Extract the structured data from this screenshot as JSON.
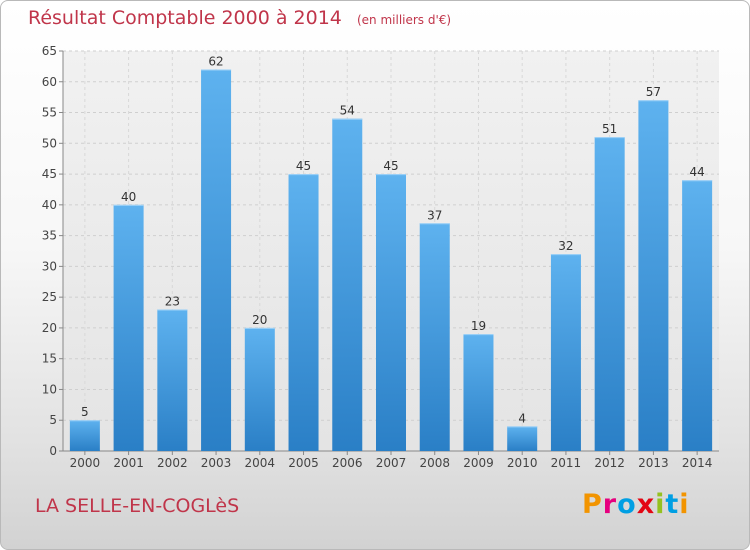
{
  "title": "Résultat Comptable 2000 à 2014",
  "unit_note": "(en milliers d'€)",
  "city": "LA SELLE-EN-COGLèS",
  "brand": {
    "text": "Proxiti",
    "colors": [
      "#f29400",
      "#e6007e",
      "#009fe3",
      "#e30613",
      "#95c11f",
      "#009fe3",
      "#f29400"
    ]
  },
  "chart_data": {
    "type": "bar",
    "categories": [
      "2000",
      "2001",
      "2002",
      "2003",
      "2004",
      "2005",
      "2006",
      "2007",
      "2008",
      "2009",
      "2010",
      "2011",
      "2012",
      "2013",
      "2014"
    ],
    "values": [
      5,
      40,
      23,
      62,
      20,
      45,
      54,
      45,
      37,
      19,
      4,
      32,
      51,
      57,
      44
    ],
    "ylim": [
      0,
      65
    ],
    "yticks": [
      0,
      5,
      10,
      15,
      20,
      25,
      30,
      35,
      40,
      45,
      50,
      55,
      60,
      65
    ],
    "grid": true,
    "bar_color": "#3d97df"
  }
}
